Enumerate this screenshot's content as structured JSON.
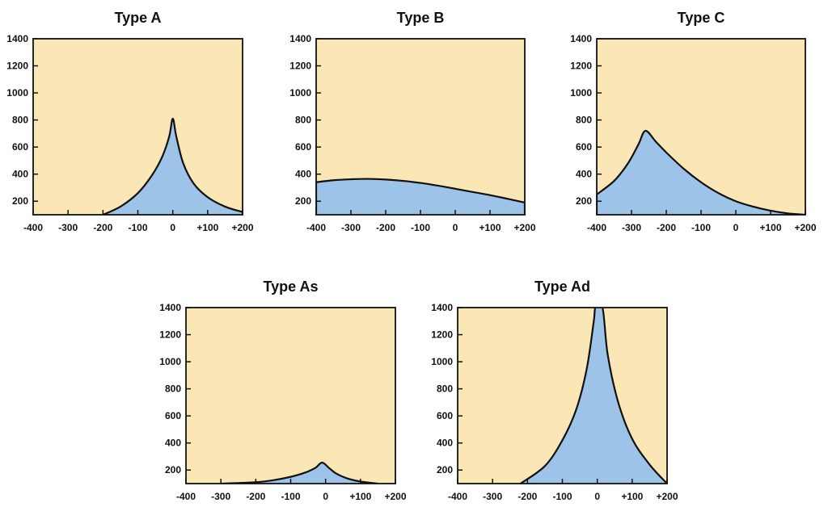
{
  "chart_data": [
    {
      "type": "area",
      "title": "Type A",
      "xlim": [
        -400,
        200
      ],
      "ylim": [
        100,
        1400
      ],
      "xticks": [
        "-400",
        "-300",
        "-200",
        "-100",
        "0",
        "+100",
        "+200"
      ],
      "yticks": [
        "200",
        "400",
        "600",
        "800",
        "1000",
        "1200",
        "1400"
      ],
      "series": [
        {
          "x": [
            -200,
            -150,
            -100,
            -60,
            -30,
            -10,
            0,
            10,
            30,
            60,
            100,
            150,
            200
          ],
          "y": [
            100,
            160,
            260,
            390,
            530,
            680,
            810,
            680,
            480,
            330,
            230,
            160,
            120
          ]
        }
      ]
    },
    {
      "type": "area",
      "title": "Type B",
      "xlim": [
        -400,
        200
      ],
      "ylim": [
        100,
        1400
      ],
      "xticks": [
        "-400",
        "-300",
        "-200",
        "-100",
        "0",
        "+100",
        "+200"
      ],
      "yticks": [
        "200",
        "400",
        "600",
        "800",
        "1000",
        "1200",
        "1400"
      ],
      "series": [
        {
          "x": [
            -400,
            -350,
            -300,
            -250,
            -200,
            -150,
            -100,
            -50,
            0,
            50,
            100,
            150,
            200
          ],
          "y": [
            340,
            355,
            362,
            365,
            360,
            350,
            335,
            315,
            292,
            268,
            245,
            218,
            190
          ]
        }
      ]
    },
    {
      "type": "area",
      "title": "Type C",
      "xlim": [
        -400,
        200
      ],
      "ylim": [
        100,
        1400
      ],
      "xticks": [
        "-400",
        "-300",
        "-200",
        "-100",
        "0",
        "+100",
        "+200"
      ],
      "yticks": [
        "200",
        "400",
        "600",
        "800",
        "1000",
        "1200",
        "1400"
      ],
      "series": [
        {
          "x": [
            -400,
            -350,
            -310,
            -280,
            -260,
            -230,
            -200,
            -150,
            -100,
            -50,
            0,
            50,
            100,
            150,
            200
          ],
          "y": [
            250,
            350,
            480,
            620,
            720,
            640,
            560,
            440,
            340,
            260,
            200,
            160,
            130,
            110,
            100
          ]
        }
      ]
    },
    {
      "type": "area",
      "title": "Type As",
      "xlim": [
        -400,
        200
      ],
      "ylim": [
        100,
        1400
      ],
      "xticks": [
        "-400",
        "-300",
        "-200",
        "-100",
        "0",
        "+100",
        "+200"
      ],
      "yticks": [
        "200",
        "400",
        "600",
        "800",
        "1000",
        "1200",
        "1400"
      ],
      "series": [
        {
          "x": [
            -300,
            -200,
            -150,
            -100,
            -60,
            -30,
            -10,
            10,
            30,
            60,
            100,
            150
          ],
          "y": [
            100,
            110,
            125,
            150,
            180,
            215,
            255,
            215,
            175,
            140,
            115,
            100
          ]
        }
      ]
    },
    {
      "type": "area",
      "title": "Type Ad",
      "xlim": [
        -400,
        200
      ],
      "ylim": [
        100,
        1400
      ],
      "xticks": [
        "-400",
        "-300",
        "-200",
        "-100",
        "0",
        "+100",
        "+200"
      ],
      "yticks": [
        "200",
        "400",
        "600",
        "800",
        "1000",
        "1200",
        "1400"
      ],
      "series": [
        {
          "x": [
            -220,
            -150,
            -100,
            -60,
            -30,
            -10,
            -5,
            15,
            30,
            60,
            100,
            150,
            200
          ],
          "y": [
            100,
            230,
            420,
            650,
            950,
            1300,
            1400,
            1400,
            1050,
            700,
            430,
            240,
            100
          ]
        }
      ]
    }
  ]
}
